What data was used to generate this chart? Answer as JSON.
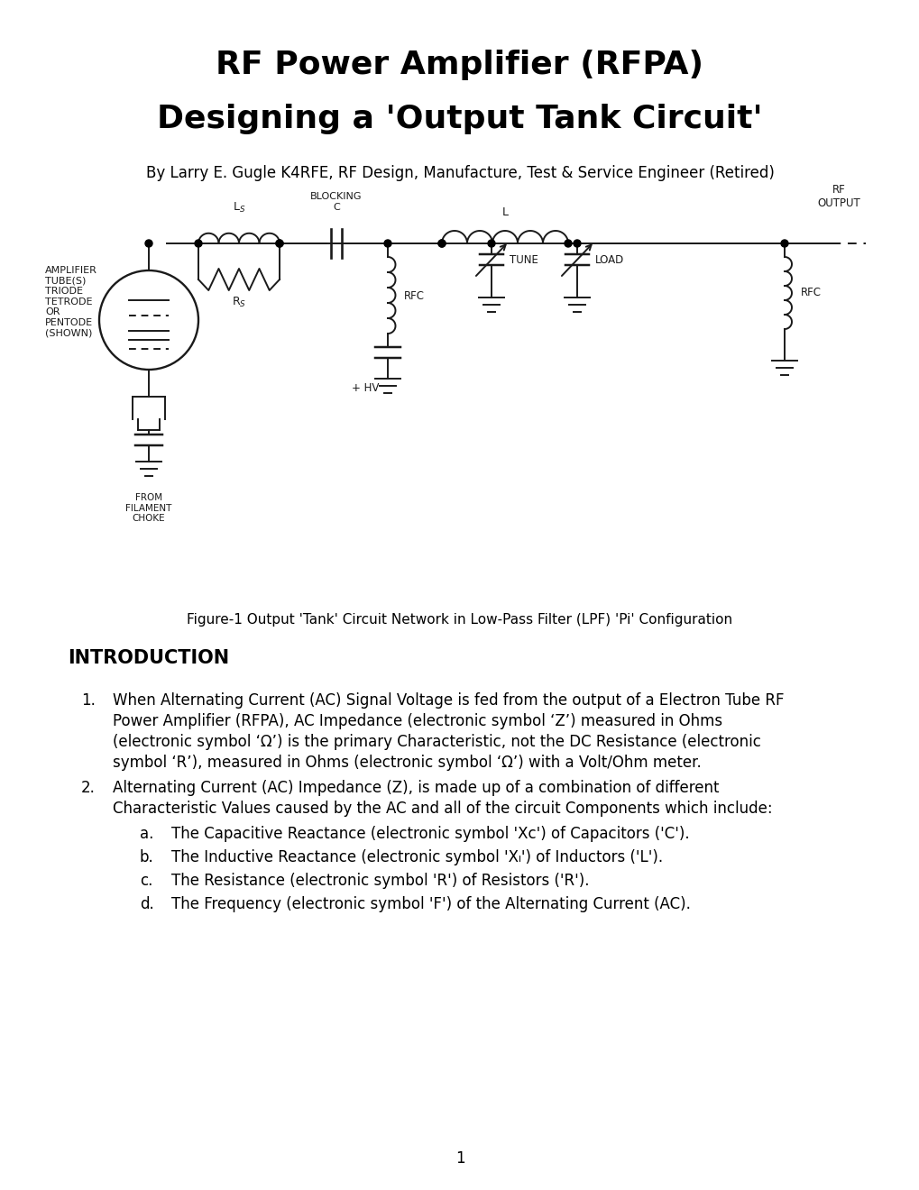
{
  "title_line1": "RF Power Amplifier (RFPA)",
  "title_line2": "Designing a 'Output Tank Circuit'",
  "author": "By Larry E. Gugle K4RFE, RF Design, Manufacture, Test & Service Engineer (Retired)",
  "figure_caption": "Figure-1 Output 'Tank' Circuit Network in Low-Pass Filter (LPF) 'Pi' Configuration",
  "section_title": "INTRODUCTION",
  "page_number": "1",
  "bg_color": "#ffffff",
  "text_color": "#000000",
  "title_fontsize": 26,
  "subtitle_fontsize": 26,
  "author_fontsize": 12,
  "body_fontsize": 12,
  "section_fontsize": 15,
  "figure_fontsize": 11,
  "item1": "When Alternating Current (AC) Signal Voltage is fed from the output of a Electron Tube RF Power Amplifier (RFPA), AC Impedance (electronic symbol 'Z') measured in Ohms (electronic symbol 'Ω') is the primary Characteristic, not the DC Resistance (electronic symbol 'R'), measured in Ohms (electronic symbol 'Ω) with a Volt/Ohm meter.",
  "item2": "Alternating Current (AC) Impedance (Z), is made up of a combination of different Characteristic Values caused by the AC and all of the circuit Components which include:",
  "suba": "The Capacitive Reactance (electronic symbol 'Xc') of Capacitors ('C').",
  "subb": "The Inductive Reactance (electronic symbol 'Xₗ') of Inductors ('L').",
  "subc": "The Resistance (electronic symbol 'R') of Resistors ('R').",
  "subd": "The Frequency (electronic symbol 'F') of the Alternating Current (AC)."
}
